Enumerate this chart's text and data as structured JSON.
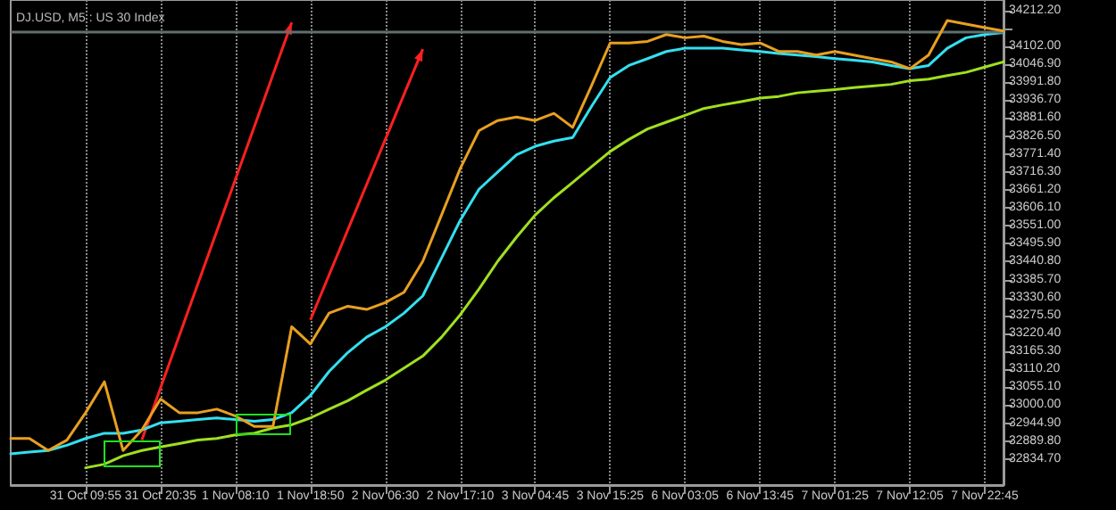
{
  "chart_data": {
    "type": "line",
    "title": "DJ.USD, M5 : US 30 Index",
    "categories": [
      null,
      null,
      null,
      null,
      "31 Oct 09:55",
      null,
      null,
      null,
      "31 Oct 20:35",
      null,
      null,
      null,
      "1 Nov 08:10",
      null,
      null,
      null,
      "1 Nov 18:50",
      null,
      null,
      null,
      "2 Nov 06:30",
      null,
      null,
      null,
      "2 Nov 17:10",
      null,
      null,
      null,
      "3 Nov 04:45",
      null,
      null,
      null,
      "3 Nov 15:25",
      null,
      null,
      null,
      "6 Nov 03:05",
      null,
      null,
      null,
      "6 Nov 13:45",
      null,
      null,
      null,
      "7 Nov 01:25",
      null,
      null,
      null,
      "7 Nov 12:05",
      null,
      null,
      null,
      "7 Nov 22:45",
      null
    ],
    "series": [
      {
        "color": "#a0e020",
        "values": [
          null,
          null,
          null,
          null,
          32808,
          32819,
          32845,
          32861,
          32872,
          32882,
          32893,
          32898,
          32909,
          32914,
          32930,
          32940,
          32961,
          32988,
          33014,
          33046,
          33077,
          33114,
          33151,
          33209,
          33278,
          33357,
          33442,
          33516,
          33584,
          33637,
          33684,
          33732,
          33779,
          33816,
          33848,
          33869,
          33890,
          33911,
          33922,
          33932,
          33943,
          33948,
          33959,
          33964,
          33969,
          33975,
          33980,
          33985,
          33996,
          34001,
          34012,
          34022,
          34038,
          34054
        ]
      },
      {
        "color": "#33e0f0",
        "values": [
          32851,
          32856,
          32861,
          32877,
          32898,
          32914,
          32914,
          32924,
          32946,
          32951,
          32956,
          32961,
          32956,
          32951,
          32956,
          32977,
          33030,
          33104,
          33162,
          33209,
          33241,
          33283,
          33336,
          33452,
          33568,
          33663,
          33716,
          33769,
          33795,
          33811,
          33822,
          33917,
          34006,
          34043,
          34064,
          34086,
          34096,
          34096,
          34096,
          34091,
          34086,
          34080,
          34075,
          34070,
          34064,
          34059,
          34054,
          34043,
          34033,
          34043,
          34096,
          34128,
          34138,
          34144
        ]
      },
      {
        "color": "#e8a020",
        "values": [
          32898,
          32898,
          32861,
          32893,
          32977,
          33072,
          32861,
          32924,
          33019,
          32977,
          32977,
          32988,
          32967,
          32935,
          32935,
          33241,
          33188,
          33283,
          33304,
          33294,
          33315,
          33347,
          33442,
          33584,
          33727,
          33843,
          33874,
          33885,
          33874,
          33896,
          33853,
          33980,
          34112,
          34112,
          34117,
          34138,
          34128,
          34133,
          34117,
          34107,
          34112,
          34086,
          34086,
          34075,
          34086,
          34075,
          34064,
          34054,
          34033,
          34075,
          34181,
          34170,
          34159,
          34149
        ]
      }
    ],
    "ylim": [
      32755,
      34244
    ],
    "yticks": [
      {
        "value": 32834.7,
        "label": "32834.70"
      },
      {
        "value": 32889.8,
        "label": "32889.80"
      },
      {
        "value": 32944.9,
        "label": "32944.90"
      },
      {
        "value": 33000,
        "label": "33000.00"
      },
      {
        "value": 33055.1,
        "label": "33055.10"
      },
      {
        "value": 33110.2,
        "label": "33110.20"
      },
      {
        "value": 33165.3,
        "label": "33165.30"
      },
      {
        "value": 33220.4,
        "label": "33220.40"
      },
      {
        "value": 33275.5,
        "label": "33275.50"
      },
      {
        "value": 33330.6,
        "label": "33330.60"
      },
      {
        "value": 33385.7,
        "label": "33385.70"
      },
      {
        "value": 33440.8,
        "label": "33440.80"
      },
      {
        "value": 33495.9,
        "label": "33495.90"
      },
      {
        "value": 33551,
        "label": "33551.00"
      },
      {
        "value": 33606.1,
        "label": "33606.10"
      },
      {
        "value": 33661.2,
        "label": "33661.20"
      },
      {
        "value": 33716.3,
        "label": "33716.30"
      },
      {
        "value": 33771.4,
        "label": "33771.40"
      },
      {
        "value": 33826.5,
        "label": "33826.50"
      },
      {
        "value": 33881.6,
        "label": "33881.60"
      },
      {
        "value": 33936.7,
        "label": "33936.70"
      },
      {
        "value": 33991.8,
        "label": "33991.80"
      },
      {
        "value": 34046.9,
        "label": "34046.90"
      },
      {
        "value": 34102,
        "label": "34102.00"
      },
      {
        "value": 34157.1,
        "label": null
      },
      {
        "value": 34212.2,
        "label": "34212.20"
      }
    ],
    "ref_lines": [
      {
        "axis": "y",
        "value": 34145,
        "color": "#607070"
      }
    ],
    "grid": "x",
    "marker": "none",
    "line_style": "solid"
  }
}
